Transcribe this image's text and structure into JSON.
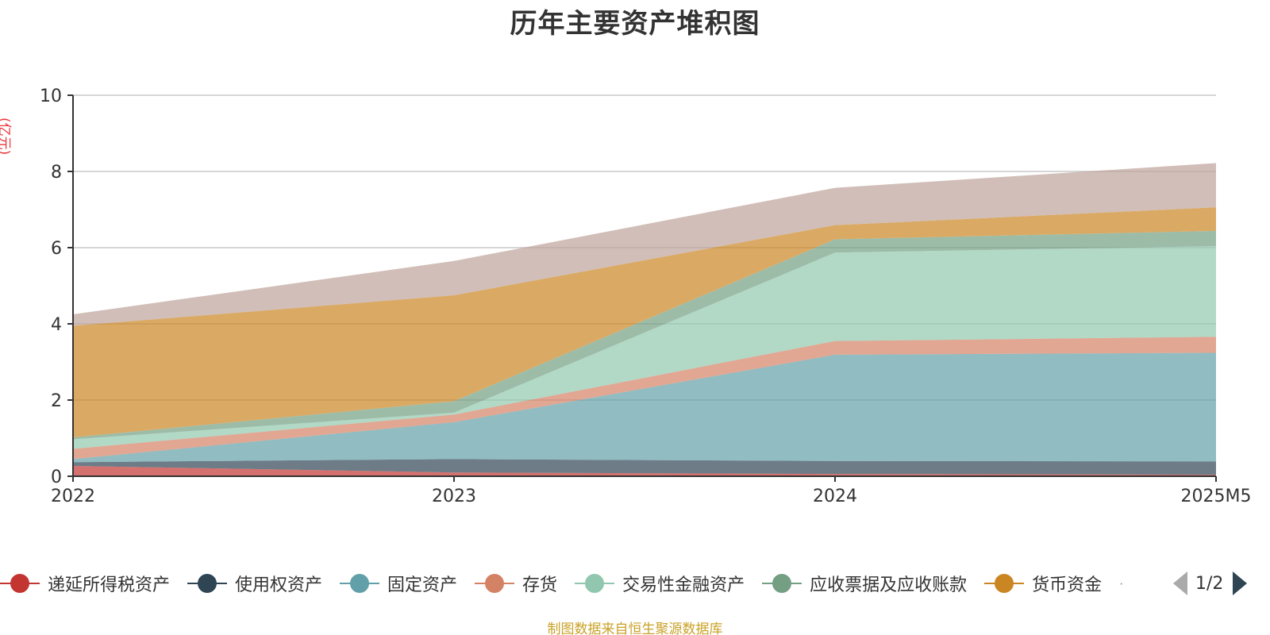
{
  "chart_data": {
    "type": "area",
    "stacked": true,
    "title": "历年主要资产堆积图",
    "unit_label": "(亿元)",
    "categories": [
      "2022",
      "2023",
      "2024",
      "2025M5"
    ],
    "ylim": [
      0,
      10
    ],
    "yticks": [
      0,
      2,
      4,
      6,
      8,
      10
    ],
    "grid": true,
    "legend_position": "bottom",
    "series": [
      {
        "name": "递延所得税资产",
        "color": "#c23531",
        "values": [
          0.27,
          0.1,
          0.06,
          0.04
        ]
      },
      {
        "name": "使用权资产",
        "color": "#2f4554",
        "values": [
          0.1,
          0.35,
          0.34,
          0.35
        ]
      },
      {
        "name": "固定资产",
        "color": "#61a0a8",
        "values": [
          0.08,
          0.97,
          2.79,
          2.85
        ]
      },
      {
        "name": "存货",
        "color": "#d48265",
        "values": [
          0.27,
          0.2,
          0.36,
          0.42
        ]
      },
      {
        "name": "交易性金融资产",
        "color": "#91c7ae",
        "values": [
          0.25,
          0.05,
          2.32,
          2.38
        ]
      },
      {
        "name": "应收票据及应收账款",
        "color": "#749f83",
        "values": [
          0.05,
          0.3,
          0.35,
          0.4
        ]
      },
      {
        "name": "货币资金",
        "color": "#ca8622",
        "values": [
          2.93,
          2.78,
          0.37,
          0.62
        ]
      },
      {
        "name": "",
        "color": "#bda29a",
        "values": [
          0.3,
          0.9,
          0.98,
          1.16
        ]
      }
    ]
  },
  "legend": {
    "ellipsis": "·",
    "page": "1/2"
  },
  "source_note": "制图数据来自恒生聚源数据库"
}
